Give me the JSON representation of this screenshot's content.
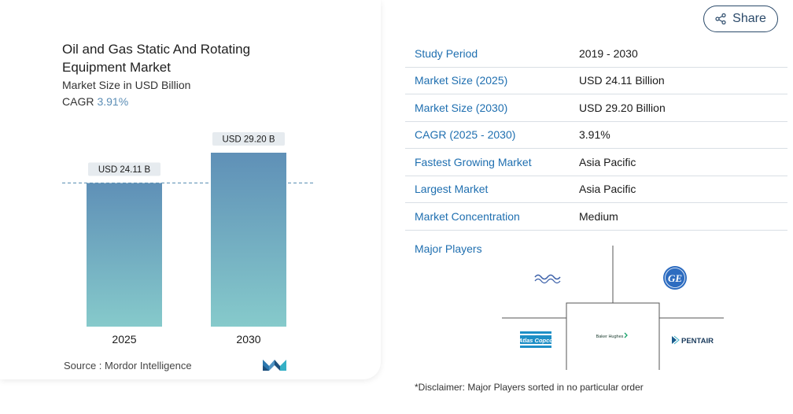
{
  "chart": {
    "title": "Oil and Gas Static And Rotating Equipment Market",
    "subtitle": "Market Size in USD Billion",
    "cagr_label": "CAGR",
    "cagr_value": "3.91%",
    "source": "Source :  Mordor Intelligence"
  },
  "chart_data": {
    "type": "bar",
    "title": "Oil and Gas Static And Rotating Equipment Market",
    "subtitle": "Market Size in USD Billion",
    "categories": [
      "2025",
      "2030"
    ],
    "values": [
      24.11,
      29.2
    ],
    "data_labels": [
      "USD 24.11 B",
      "USD 29.20 B"
    ],
    "xlabel": "",
    "ylabel": "",
    "ylim": [
      0,
      29.2
    ],
    "grid": false,
    "reference_line": 24.11,
    "colors": {
      "bar_top": "#5f90b7",
      "bar_bottom": "#86cacb",
      "label_bg": "#e6ebef",
      "ref_line": "#5a8fb3"
    }
  },
  "share": {
    "label": "Share"
  },
  "info": {
    "rows": [
      {
        "key": "Study Period",
        "value": "2019 - 2030"
      },
      {
        "key": "Market Size (2025)",
        "value": "USD 24.11 Billion"
      },
      {
        "key": "Market Size (2030)",
        "value": "USD 29.20 Billion"
      },
      {
        "key": "CAGR (2025 - 2030)",
        "value": "3.91%"
      },
      {
        "key": "Fastest Growing Market",
        "value": "Asia Pacific"
      },
      {
        "key": "Largest Market",
        "value": "Asia Pacific"
      },
      {
        "key": "Market Concentration",
        "value": "Medium"
      }
    ]
  },
  "players": {
    "label": "Major Players",
    "logos": [
      "Alfa Laval",
      "GE",
      "Atlas Copco",
      "Baker Hughes",
      "PENTAIR"
    ],
    "logo_text": {
      "atlas": "Atlas Copco",
      "baker": "Baker Hughes",
      "pentair": "PENTAIR"
    }
  },
  "disclaimer": "*Disclaimer: Major Players sorted in no particular order"
}
